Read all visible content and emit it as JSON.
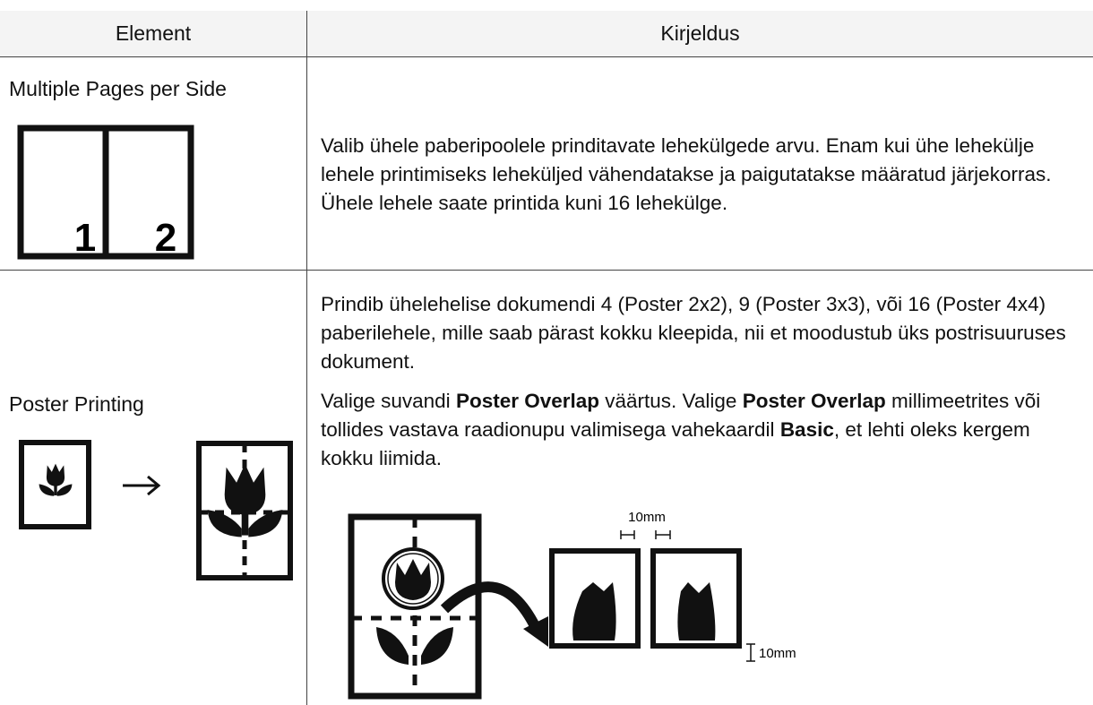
{
  "table": {
    "header": [
      "Element",
      "Kirjeldus"
    ],
    "rows": [
      {
        "element": "Multiple Pages per Side",
        "icon_labels": [
          "1",
          "2"
        ],
        "description": [
          [
            {
              "text": "Valib ühele paberipoolele prinditavate lehekülgede arvu. Enam kui ühe lehekülje lehele printimiseks leheküljed vähendatakse ja paigutatakse määratud järjekorras. Ühele lehele saate printida kuni 16 lehekülge.",
              "bold": false
            }
          ]
        ]
      },
      {
        "element": "Poster Printing",
        "description": [
          [
            {
              "text": "Prindib ühelehelise dokumendi 4 (Poster 2x2), 9 (Poster 3x3), või 16 (Poster 4x4) paberilehele, mille saab pärast kokku kleepida, nii et moodustub üks postrisuuruses dokument.",
              "bold": false
            }
          ],
          [
            {
              "text": "Valige suvandi ",
              "bold": false
            },
            {
              "text": "Poster Overlap",
              "bold": true
            },
            {
              "text": " väärtus. Valige ",
              "bold": false
            },
            {
              "text": "Poster Overlap",
              "bold": true
            },
            {
              "text": " millimeetrites või tollides vastava raadionupu valimisega vahekaardil ",
              "bold": false
            },
            {
              "text": "Basic",
              "bold": true
            },
            {
              "text": ", et lehti oleks kergem kokku liimida.",
              "bold": false
            }
          ]
        ],
        "figure_labels": [
          "10mm",
          "10mm"
        ]
      }
    ]
  }
}
